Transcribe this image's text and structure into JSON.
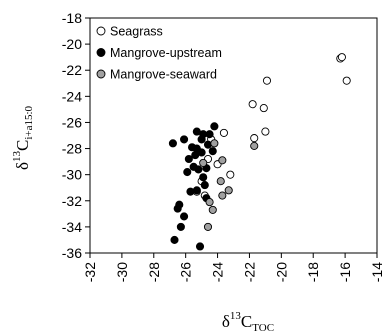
{
  "chart_data": {
    "type": "scatter",
    "xlabel": {
      "prefix": "δ",
      "sup": "13",
      "main": "C",
      "sub": "TOC"
    },
    "ylabel": {
      "prefix": "δ",
      "sup": "13",
      "main": "C",
      "sub": "i+a15:0"
    },
    "xlim": [
      -32,
      -14
    ],
    "ylim": [
      -36,
      -18
    ],
    "xticks": [
      -32,
      -30,
      -28,
      -26,
      -24,
      -22,
      -20,
      -18,
      -16,
      -14
    ],
    "yticks": [
      -36,
      -34,
      -32,
      -30,
      -28,
      -26,
      -24,
      -22,
      -20,
      -18
    ],
    "grid": false,
    "legend_position": "top-right",
    "series": [
      {
        "name": "Seagrass",
        "marker": "open-circle",
        "color": "#ffffff",
        "edge": "#000000",
        "points": [
          [
            -16.3,
            -21.1
          ],
          [
            -16.2,
            -21.0
          ],
          [
            -15.9,
            -22.8
          ],
          [
            -20.9,
            -22.8
          ],
          [
            -21.8,
            -24.6
          ],
          [
            -21.1,
            -24.9
          ],
          [
            -21.0,
            -26.7
          ],
          [
            -21.7,
            -27.2
          ],
          [
            -23.6,
            -26.8
          ],
          [
            -23.2,
            -30.0
          ],
          [
            -24.0,
            -29.2
          ],
          [
            -25.3,
            -31.3
          ],
          [
            -24.8,
            -31.6
          ],
          [
            -25.0,
            -30.5
          ],
          [
            -24.6,
            -28.8
          ],
          [
            -24.4,
            -27.3
          ]
        ]
      },
      {
        "name": "Mangrove-upstream",
        "marker": "filled-circle",
        "color": "#000000",
        "edge": "#000000",
        "points": [
          [
            -26.7,
            -35.0
          ],
          [
            -26.3,
            -34.0
          ],
          [
            -26.1,
            -33.2
          ],
          [
            -26.5,
            -32.6
          ],
          [
            -26.4,
            -32.3
          ],
          [
            -25.7,
            -31.3
          ],
          [
            -25.3,
            -31.2
          ],
          [
            -24.7,
            -31.8
          ],
          [
            -25.1,
            -35.5
          ],
          [
            -26.8,
            -27.6
          ],
          [
            -26.1,
            -27.3
          ],
          [
            -25.3,
            -26.7
          ],
          [
            -24.9,
            -26.9
          ],
          [
            -24.2,
            -26.3
          ],
          [
            -25.8,
            -28.8
          ],
          [
            -25.5,
            -29.4
          ],
          [
            -25.3,
            -28.0
          ],
          [
            -25.0,
            -28.3
          ],
          [
            -24.6,
            -27.7
          ],
          [
            -24.3,
            -28.2
          ],
          [
            -25.9,
            -29.8
          ],
          [
            -25.2,
            -29.6
          ],
          [
            -24.9,
            -30.2
          ],
          [
            -24.7,
            -29.5
          ],
          [
            -25.6,
            -27.9
          ],
          [
            -25.4,
            -28.5
          ],
          [
            -24.8,
            -30.8
          ],
          [
            -24.5,
            -26.9
          ],
          [
            -25.0,
            -27.3
          ]
        ]
      },
      {
        "name": "Mangrove-seaward",
        "marker": "gray-circle",
        "color": "#a0a0a0",
        "edge": "#000000",
        "points": [
          [
            -24.2,
            -27.6
          ],
          [
            -23.7,
            -28.9
          ],
          [
            -23.3,
            -31.2
          ],
          [
            -23.7,
            -31.6
          ],
          [
            -24.5,
            -32.1
          ],
          [
            -24.3,
            -32.7
          ],
          [
            -24.6,
            -34.0
          ],
          [
            -21.7,
            -27.8
          ],
          [
            -23.8,
            -30.5
          ],
          [
            -24.9,
            -29.1
          ]
        ]
      }
    ]
  }
}
